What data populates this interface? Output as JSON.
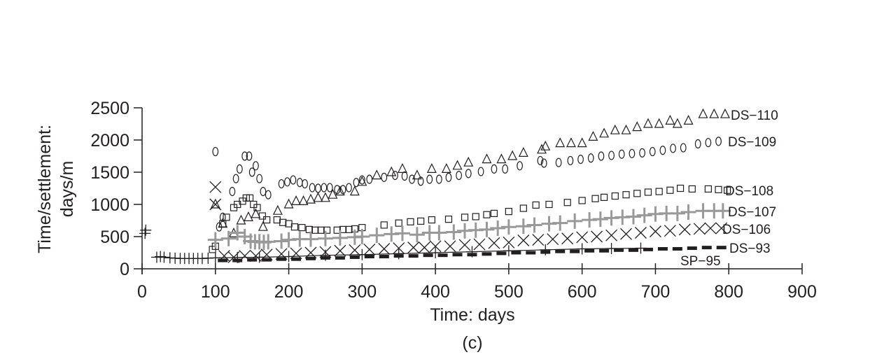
{
  "chart_data": {
    "type": "scatter",
    "title": "",
    "caption": "(c)",
    "xlabel": "Time: days",
    "ylabel": [
      "Time/settlement:",
      "days/m"
    ],
    "xlim": [
      0,
      900
    ],
    "ylim": [
      0,
      2500
    ],
    "xticks": [
      0,
      100,
      200,
      300,
      400,
      500,
      600,
      700,
      800,
      900
    ],
    "yticks": [
      0,
      500,
      1000,
      1500,
      2000,
      2500
    ],
    "grid": false,
    "legend": "inline labels at right end of each series",
    "series": [
      {
        "name": "DS−110",
        "marker": "triangle",
        "color": "#231f20",
        "points": [
          [
            100,
            1000
          ],
          [
            110,
            700
          ],
          [
            125,
            550
          ],
          [
            135,
            750
          ],
          [
            145,
            800
          ],
          [
            155,
            850
          ],
          [
            165,
            650
          ],
          [
            185,
            900
          ],
          [
            200,
            1000
          ],
          [
            210,
            1050
          ],
          [
            220,
            1050
          ],
          [
            230,
            1075
          ],
          [
            240,
            1100
          ],
          [
            250,
            1100
          ],
          [
            260,
            1150
          ],
          [
            270,
            1200
          ],
          [
            290,
            1200
          ],
          [
            300,
            1350
          ],
          [
            320,
            1450
          ],
          [
            340,
            1500
          ],
          [
            355,
            1550
          ],
          [
            375,
            1450
          ],
          [
            395,
            1550
          ],
          [
            415,
            1550
          ],
          [
            430,
            1600
          ],
          [
            445,
            1650
          ],
          [
            470,
            1700
          ],
          [
            490,
            1700
          ],
          [
            505,
            1750
          ],
          [
            520,
            1800
          ],
          [
            545,
            1850
          ],
          [
            550,
            1900
          ],
          [
            570,
            1950
          ],
          [
            585,
            1950
          ],
          [
            600,
            1950
          ],
          [
            615,
            2050
          ],
          [
            630,
            2100
          ],
          [
            645,
            2150
          ],
          [
            660,
            2150
          ],
          [
            675,
            2200
          ],
          [
            690,
            2250
          ],
          [
            705,
            2250
          ],
          [
            720,
            2300
          ],
          [
            730,
            2250
          ],
          [
            745,
            2300
          ],
          [
            765,
            2400
          ],
          [
            780,
            2400
          ],
          [
            795,
            2400
          ]
        ]
      },
      {
        "name": "DS−109",
        "marker": "circle",
        "color": "#231f20",
        "points": [
          [
            100,
            1820
          ],
          [
            105,
            650
          ],
          [
            110,
            800
          ],
          [
            123,
            1200
          ],
          [
            128,
            1400
          ],
          [
            133,
            1550
          ],
          [
            140,
            1750
          ],
          [
            146,
            1750
          ],
          [
            150,
            1500
          ],
          [
            155,
            1600
          ],
          [
            160,
            1400
          ],
          [
            165,
            1200
          ],
          [
            172,
            1150
          ],
          [
            190,
            1320
          ],
          [
            198,
            1350
          ],
          [
            206,
            1380
          ],
          [
            215,
            1340
          ],
          [
            222,
            1320
          ],
          [
            232,
            1260
          ],
          [
            240,
            1250
          ],
          [
            248,
            1260
          ],
          [
            256,
            1260
          ],
          [
            266,
            1230
          ],
          [
            274,
            1230
          ],
          [
            282,
            1260
          ],
          [
            292,
            1340
          ],
          [
            300,
            1380
          ],
          [
            310,
            1390
          ],
          [
            330,
            1420
          ],
          [
            345,
            1450
          ],
          [
            358,
            1440
          ],
          [
            368,
            1390
          ],
          [
            380,
            1360
          ],
          [
            392,
            1390
          ],
          [
            405,
            1390
          ],
          [
            418,
            1420
          ],
          [
            432,
            1450
          ],
          [
            445,
            1480
          ],
          [
            462,
            1510
          ],
          [
            480,
            1550
          ],
          [
            495,
            1550
          ],
          [
            515,
            1600
          ],
          [
            543,
            1680
          ],
          [
            548,
            1640
          ],
          [
            568,
            1650
          ],
          [
            584,
            1680
          ],
          [
            598,
            1700
          ],
          [
            612,
            1720
          ],
          [
            626,
            1750
          ],
          [
            640,
            1760
          ],
          [
            654,
            1780
          ],
          [
            668,
            1790
          ],
          [
            682,
            1800
          ],
          [
            696,
            1820
          ],
          [
            710,
            1840
          ],
          [
            724,
            1870
          ],
          [
            738,
            1880
          ],
          [
            758,
            1940
          ],
          [
            772,
            1960
          ],
          [
            786,
            1980
          ]
        ]
      },
      {
        "name": "DS−108",
        "marker": "square",
        "color": "#231f20",
        "points": [
          [
            96,
            300
          ],
          [
            100,
            350
          ],
          [
            110,
            700
          ],
          [
            115,
            800
          ],
          [
            125,
            950
          ],
          [
            130,
            1000
          ],
          [
            137,
            1050
          ],
          [
            142,
            1100
          ],
          [
            147,
            1100
          ],
          [
            152,
            1000
          ],
          [
            157,
            950
          ],
          [
            164,
            820
          ],
          [
            170,
            760
          ],
          [
            184,
            760
          ],
          [
            192,
            720
          ],
          [
            200,
            700
          ],
          [
            208,
            650
          ],
          [
            218,
            640
          ],
          [
            228,
            610
          ],
          [
            236,
            600
          ],
          [
            244,
            600
          ],
          [
            252,
            600
          ],
          [
            266,
            600
          ],
          [
            274,
            610
          ],
          [
            282,
            610
          ],
          [
            290,
            620
          ],
          [
            300,
            640
          ],
          [
            330,
            680
          ],
          [
            350,
            710
          ],
          [
            366,
            730
          ],
          [
            380,
            740
          ],
          [
            395,
            760
          ],
          [
            418,
            770
          ],
          [
            440,
            800
          ],
          [
            455,
            810
          ],
          [
            470,
            840
          ],
          [
            480,
            860
          ],
          [
            500,
            890
          ],
          [
            520,
            940
          ],
          [
            537,
            990
          ],
          [
            555,
            1000
          ],
          [
            580,
            1030
          ],
          [
            600,
            1060
          ],
          [
            618,
            1090
          ],
          [
            630,
            1110
          ],
          [
            645,
            1130
          ],
          [
            660,
            1150
          ],
          [
            675,
            1170
          ],
          [
            690,
            1190
          ],
          [
            705,
            1200
          ],
          [
            720,
            1220
          ],
          [
            734,
            1250
          ],
          [
            750,
            1240
          ],
          [
            772,
            1240
          ],
          [
            786,
            1230
          ],
          [
            798,
            1220
          ]
        ]
      },
      {
        "name": "DS−107",
        "marker": "plus-thick",
        "color": "#999999",
        "points": [
          [
            100,
            450
          ],
          [
            118,
            470
          ],
          [
            130,
            560
          ],
          [
            140,
            500
          ],
          [
            148,
            430
          ],
          [
            154,
            420
          ],
          [
            160,
            420
          ],
          [
            166,
            410
          ],
          [
            172,
            420
          ],
          [
            190,
            430
          ],
          [
            200,
            450
          ],
          [
            215,
            460
          ],
          [
            230,
            460
          ],
          [
            250,
            470
          ],
          [
            270,
            480
          ],
          [
            290,
            490
          ],
          [
            300,
            500
          ],
          [
            320,
            520
          ],
          [
            340,
            540
          ],
          [
            355,
            550
          ],
          [
            375,
            530
          ],
          [
            392,
            560
          ],
          [
            405,
            560
          ],
          [
            425,
            570
          ],
          [
            440,
            590
          ],
          [
            455,
            600
          ],
          [
            470,
            610
          ],
          [
            485,
            630
          ],
          [
            500,
            650
          ],
          [
            520,
            660
          ],
          [
            535,
            680
          ],
          [
            555,
            700
          ],
          [
            570,
            710
          ],
          [
            590,
            740
          ],
          [
            610,
            760
          ],
          [
            625,
            770
          ],
          [
            640,
            790
          ],
          [
            655,
            800
          ],
          [
            670,
            810
          ],
          [
            685,
            830
          ],
          [
            700,
            850
          ],
          [
            715,
            860
          ],
          [
            730,
            860
          ],
          [
            745,
            880
          ],
          [
            765,
            900
          ],
          [
            780,
            900
          ],
          [
            792,
            900
          ]
        ]
      },
      {
        "name": "DS−106",
        "marker": "x",
        "color": "#231f20",
        "points": [
          [
            100,
            1270
          ],
          [
            100,
            1000
          ],
          [
            112,
            200
          ],
          [
            125,
            180
          ],
          [
            140,
            200
          ],
          [
            155,
            200
          ],
          [
            170,
            220
          ],
          [
            190,
            230
          ],
          [
            210,
            240
          ],
          [
            230,
            250
          ],
          [
            250,
            260
          ],
          [
            270,
            280
          ],
          [
            290,
            290
          ],
          [
            310,
            300
          ],
          [
            330,
            310
          ],
          [
            350,
            320
          ],
          [
            370,
            330
          ],
          [
            385,
            330
          ],
          [
            400,
            350
          ],
          [
            420,
            350
          ],
          [
            440,
            370
          ],
          [
            460,
            380
          ],
          [
            480,
            400
          ],
          [
            500,
            410
          ],
          [
            520,
            440
          ],
          [
            540,
            450
          ],
          [
            560,
            460
          ],
          [
            580,
            470
          ],
          [
            600,
            490
          ],
          [
            620,
            500
          ],
          [
            640,
            520
          ],
          [
            660,
            540
          ],
          [
            680,
            560
          ],
          [
            700,
            580
          ],
          [
            720,
            590
          ],
          [
            740,
            610
          ],
          [
            760,
            620
          ],
          [
            775,
            630
          ],
          [
            790,
            630
          ]
        ]
      },
      {
        "name": "DS−93",
        "marker": "dash",
        "color": "#231f20",
        "points": [
          [
            110,
            130
          ],
          [
            130,
            130
          ],
          [
            150,
            140
          ],
          [
            170,
            140
          ],
          [
            190,
            150
          ],
          [
            210,
            150
          ],
          [
            230,
            160
          ],
          [
            250,
            170
          ],
          [
            270,
            170
          ],
          [
            290,
            180
          ],
          [
            310,
            190
          ],
          [
            330,
            190
          ],
          [
            350,
            200
          ],
          [
            370,
            200
          ],
          [
            390,
            210
          ],
          [
            410,
            210
          ],
          [
            430,
            220
          ],
          [
            450,
            220
          ],
          [
            470,
            230
          ],
          [
            490,
            240
          ],
          [
            510,
            250
          ],
          [
            530,
            250
          ],
          [
            550,
            260
          ],
          [
            570,
            270
          ],
          [
            590,
            270
          ],
          [
            610,
            280
          ],
          [
            630,
            280
          ],
          [
            650,
            290
          ],
          [
            670,
            290
          ],
          [
            690,
            300
          ],
          [
            710,
            310
          ],
          [
            730,
            310
          ],
          [
            750,
            320
          ],
          [
            770,
            330
          ],
          [
            790,
            330
          ]
        ]
      },
      {
        "name": "SP−95",
        "marker": "plus-thin",
        "color": "#231f20",
        "points": [
          [
            4,
            550
          ],
          [
            5,
            600
          ],
          [
            20,
            180
          ],
          [
            25,
            190
          ],
          [
            30,
            180
          ],
          [
            38,
            170
          ],
          [
            45,
            165
          ],
          [
            52,
            160
          ],
          [
            58,
            160
          ],
          [
            64,
            160
          ],
          [
            70,
            160
          ],
          [
            76,
            160
          ],
          [
            82,
            160
          ],
          [
            90,
            165
          ],
          [
            100,
            170
          ],
          [
            130,
            175
          ],
          [
            160,
            180
          ],
          [
            200,
            190
          ],
          [
            250,
            210
          ],
          [
            300,
            220
          ],
          [
            350,
            235
          ],
          [
            400,
            250
          ],
          [
            450,
            265
          ],
          [
            500,
            280
          ],
          [
            550,
            295
          ],
          [
            600,
            310
          ],
          [
            640,
            315
          ],
          [
            680,
            320
          ]
        ]
      }
    ]
  }
}
